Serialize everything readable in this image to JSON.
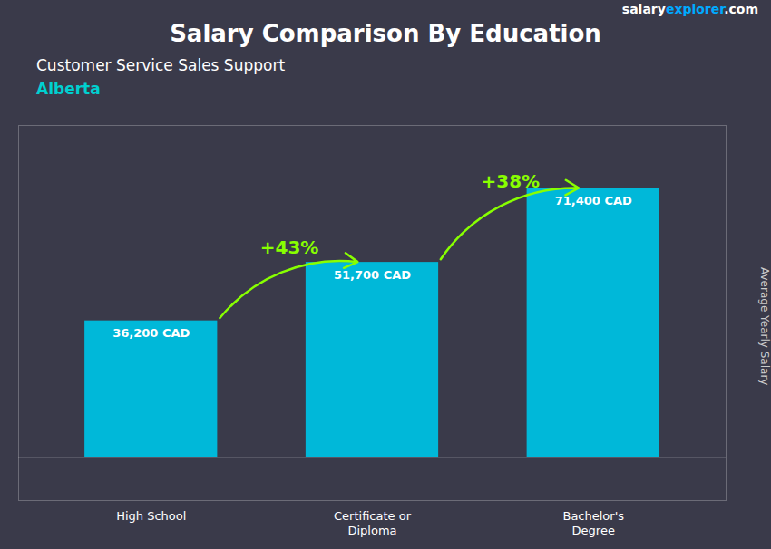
{
  "chart_data": {
    "type": "bar",
    "title": "Salary Comparison By Education",
    "subtitle": "Customer Service Sales Support",
    "annotations": [
      {
        "text": "Alberta",
        "color": "#00d0d0"
      }
    ],
    "watermark": [
      {
        "text": "salary",
        "color": "#ffffff"
      },
      {
        "text": "explorer",
        "color": "#00aaff"
      },
      {
        "text": ".com",
        "color": "#ffffff"
      }
    ],
    "ylabel": "Average Yearly Salary",
    "categories": [
      "High School",
      "Certificate or\nDiploma",
      "Bachelor's\nDegree"
    ],
    "values": [
      36200,
      51700,
      71400
    ],
    "value_labels": [
      "36,200 CAD",
      "51,700 CAD",
      "71,400 CAD"
    ],
    "data_labels": true,
    "color": "#00b8d9",
    "change_labels": {
      "labels": [
        "+43%",
        "+38%"
      ],
      "color": "#88ff00"
    },
    "ylim": [
      -11440,
      88000
    ],
    "tick_labels": "x"
  }
}
